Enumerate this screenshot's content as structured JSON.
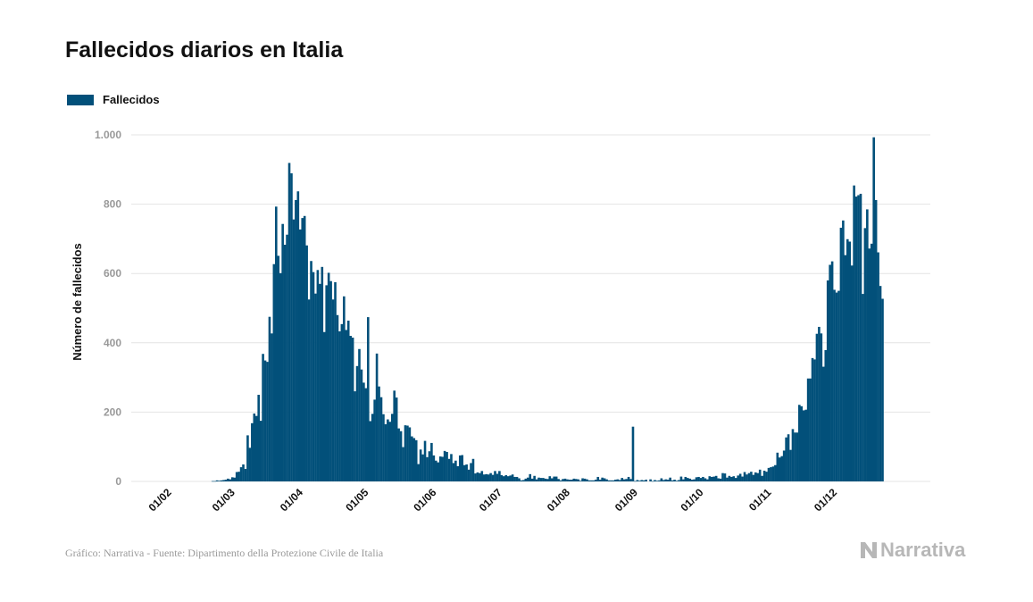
{
  "title": "Fallecidos diarios en Italia",
  "colors": {
    "bar": "#02507a",
    "grid": "#e4e4e4",
    "tick": "#999999",
    "axis_label": "#111111"
  },
  "legend": {
    "label": "Fallecidos"
  },
  "source": "Gráfico: Narrativa - Fuente: Dipartimento della Protezione Civile de Italia",
  "brand": {
    "name": "Narrativa",
    "icon": "narrativa-logo-icon"
  },
  "chart_data": {
    "type": "bar",
    "title": "Fallecidos diarios en Italia",
    "ylabel": "Número de fallecidos",
    "xlabel": "",
    "ylim": [
      0,
      1000
    ],
    "yticks": [
      0,
      200,
      400,
      600,
      800,
      1000
    ],
    "ytick_labels": [
      "0",
      "200",
      "400",
      "600",
      "800",
      "1.000"
    ],
    "grid": true,
    "legend_position": "top-left",
    "x_start": "2020-01-30",
    "x_end": "2020-12-05",
    "xtick_labels": [
      "01/02",
      "01/03",
      "01/04",
      "01/05",
      "01/06",
      "01/07",
      "01/08",
      "01/09",
      "01/10",
      "01/11",
      "01/12"
    ],
    "series": [
      {
        "name": "Fallecidos",
        "values": [
          0,
          0,
          0,
          0,
          0,
          0,
          0,
          0,
          0,
          0,
          0,
          0,
          0,
          0,
          0,
          0,
          0,
          0,
          0,
          0,
          0,
          0,
          0,
          1,
          1,
          3,
          2,
          3,
          4,
          5,
          8,
          6,
          12,
          11,
          27,
          28,
          41,
          49,
          36,
          133,
          97,
          168,
          196,
          189,
          250,
          175,
          368,
          349,
          345,
          475,
          427,
          627,
          793,
          651,
          601,
          743,
          683,
          712,
          919,
          889,
          756,
          812,
          837,
          727,
          760,
          766,
          681,
          525,
          636,
          604,
          542,
          610,
          570,
          619,
          431,
          566,
          602,
          578,
          525,
          575,
          480,
          433,
          454,
          534,
          437,
          464,
          420,
          415,
          260,
          333,
          382,
          323,
          285,
          269,
          474,
          174,
          195,
          236,
          369,
          274,
          243,
          194,
          165,
          179,
          172,
          195,
          262,
          242,
          153,
          145,
          99,
          162,
          161,
          156,
          130,
          125,
          119,
          50,
          92,
          78,
          117,
          70,
          87,
          111,
          75,
          60,
          55,
          72,
          71,
          88,
          85,
          65,
          79,
          53,
          60,
          44,
          75,
          76,
          47,
          49,
          34,
          53,
          65,
          23,
          26,
          24,
          30,
          20,
          21,
          20,
          24,
          19,
          30,
          22,
          30,
          18,
          15,
          18,
          15,
          17,
          20,
          13,
          13,
          9,
          3,
          4,
          8,
          11,
          21,
          8,
          16,
          6,
          11,
          10,
          10,
          8,
          7,
          15,
          9,
          14,
          14,
          7,
          3,
          7,
          8,
          6,
          5,
          5,
          8,
          7,
          6,
          2,
          9,
          8,
          6,
          3,
          3,
          3,
          5,
          13,
          5,
          11,
          9,
          6,
          3,
          3,
          3,
          5,
          6,
          4,
          10,
          6,
          7,
          13,
          7,
          158,
          1,
          4,
          2,
          4,
          3,
          5,
          0,
          6,
          1,
          4,
          2,
          3,
          9,
          4,
          6,
          5,
          11,
          3,
          5,
          2,
          4,
          14,
          6,
          13,
          10,
          8,
          5,
          6,
          12,
          13,
          10,
          13,
          9,
          6,
          15,
          13,
          14,
          16,
          9,
          8,
          24,
          23,
          11,
          16,
          13,
          15,
          10,
          17,
          22,
          14,
          27,
          20,
          24,
          28,
          19,
          26,
          24,
          34,
          16,
          31,
          28,
          39,
          41,
          43,
          47,
          83,
          69,
          73,
          89,
          127,
          136,
          91,
          151,
          141,
          141,
          221,
          217,
          205,
          207,
          297,
          297,
          356,
          352,
          426,
          446,
          427,
          331,
          379,
          580,
          625,
          635,
          553,
          545,
          550,
          732,
          753,
          653,
          699,
          692,
          623,
          854,
          822,
          826,
          830,
          541,
          731,
          785,
          672,
          686,
          993,
          812,
          661,
          564,
          527
        ]
      }
    ]
  }
}
